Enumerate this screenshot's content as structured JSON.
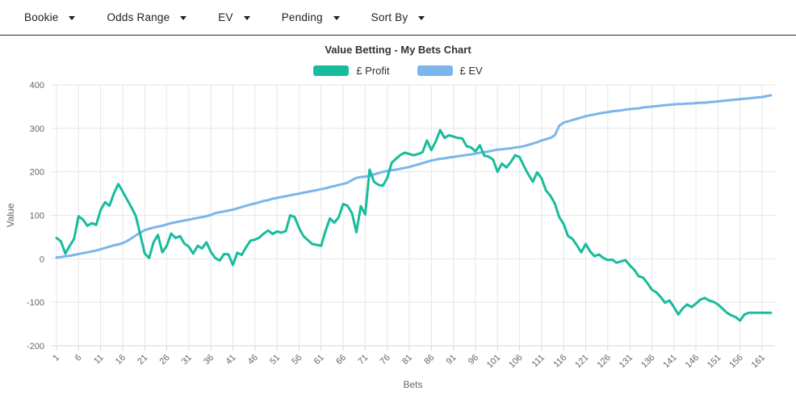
{
  "toolbar": {
    "items": [
      {
        "label": "Bookie"
      },
      {
        "label": "Odds Range"
      },
      {
        "label": "EV"
      },
      {
        "label": "Pending"
      },
      {
        "label": "Sort By"
      }
    ]
  },
  "chart": {
    "title": "Value Betting - My Bets Chart",
    "legend": [
      {
        "label": "£ Profit",
        "color": "#18bc9c"
      },
      {
        "label": "£ EV",
        "color": "#7cb5ec"
      }
    ]
  },
  "colors": {
    "profit_line": "#18bc9c",
    "ev_line": "#7cb5ec",
    "gridline": "#e6e6e6",
    "axis_line": "#ccd6eb",
    "tick_label": "#666666",
    "title_text": "#333333",
    "toolbar_text": "#1f1f1f"
  },
  "chart_data": {
    "type": "line",
    "title": "Value Betting - My Bets Chart",
    "xlabel": "Bets",
    "ylabel": "Value",
    "ylim": [
      -200,
      400
    ],
    "grid": true,
    "legend_position": "top",
    "x_start": 1,
    "x_step": 1,
    "x_ticks": [
      1,
      6,
      11,
      16,
      21,
      26,
      31,
      36,
      41,
      46,
      51,
      56,
      61,
      66,
      71,
      76,
      81,
      86,
      91,
      96,
      101,
      106,
      111,
      116,
      121,
      126,
      131,
      136,
      141,
      146,
      151,
      156,
      161
    ],
    "y_ticks": [
      -200,
      -100,
      0,
      100,
      200,
      300,
      400
    ],
    "series": [
      {
        "name": "£ Profit",
        "color": "#18bc9c",
        "values": [
          48,
          40,
          12,
          30,
          46,
          98,
          90,
          76,
          82,
          78,
          112,
          130,
          122,
          150,
          172,
          155,
          136,
          118,
          98,
          55,
          12,
          2,
          38,
          55,
          15,
          30,
          58,
          48,
          52,
          35,
          28,
          12,
          30,
          24,
          38,
          16,
          2,
          -4,
          11,
          10,
          -14,
          14,
          9,
          27,
          42,
          44,
          49,
          58,
          65,
          57,
          63,
          60,
          64,
          100,
          96,
          71,
          52,
          43,
          34,
          32,
          30,
          64,
          93,
          83,
          96,
          126,
          122,
          105,
          61,
          121,
          102,
          205,
          177,
          170,
          168,
          186,
          221,
          230,
          239,
          244,
          241,
          238,
          241,
          245,
          272,
          250,
          270,
          296,
          278,
          284,
          281,
          278,
          277,
          259,
          256,
          247,
          261,
          237,
          235,
          228,
          200,
          219,
          210,
          222,
          238,
          234,
          213,
          194,
          177,
          199,
          185,
          157,
          145,
          127,
          96,
          80,
          52,
          46,
          31,
          15,
          34,
          17,
          6,
          10,
          2,
          -3,
          -2,
          -9,
          -6,
          -3,
          -15,
          -25,
          -40,
          -43,
          -56,
          -71,
          -77,
          -88,
          -101,
          -96,
          -111,
          -128,
          -114,
          -105,
          -111,
          -103,
          -94,
          -90,
          -96,
          -99,
          -105,
          -114,
          -124,
          -130,
          -134,
          -142,
          -128,
          -124,
          -124,
          -124,
          -124,
          -124,
          -124
        ]
      },
      {
        "name": "£ EV",
        "color": "#7cb5ec",
        "values": [
          3,
          4,
          6,
          7,
          9,
          11,
          13,
          15,
          17,
          19,
          22,
          25,
          28,
          31,
          33,
          36,
          41,
          47,
          54,
          60,
          66,
          69,
          72,
          74,
          76,
          79,
          82,
          84,
          86,
          88,
          90,
          92,
          94,
          96,
          98,
          101,
          105,
          107,
          109,
          111,
          113,
          116,
          119,
          122,
          125,
          127,
          130,
          133,
          135,
          138,
          140,
          142,
          144,
          146,
          148,
          150,
          152,
          154,
          156,
          158,
          160,
          162,
          165,
          167,
          170,
          172,
          175,
          181,
          186,
          188,
          189,
          191,
          194,
          197,
          200,
          202,
          204,
          205,
          207,
          209,
          211,
          214,
          217,
          220,
          223,
          226,
          228,
          230,
          231,
          233,
          234,
          236,
          237,
          239,
          240,
          242,
          244,
          245,
          247,
          249,
          251,
          252,
          253,
          254,
          256,
          257,
          259,
          262,
          265,
          268,
          272,
          275,
          278,
          284,
          306,
          313,
          316,
          319,
          322,
          325,
          328,
          330,
          332,
          334,
          336,
          337,
          339,
          340,
          341,
          343,
          344,
          345,
          346,
          348,
          349,
          350,
          351,
          352,
          353,
          354,
          355,
          356,
          356,
          357,
          357,
          358,
          359,
          359,
          360,
          361,
          362,
          363,
          364,
          365,
          366,
          367,
          368,
          369,
          370,
          371,
          372,
          374,
          376
        ]
      }
    ]
  }
}
